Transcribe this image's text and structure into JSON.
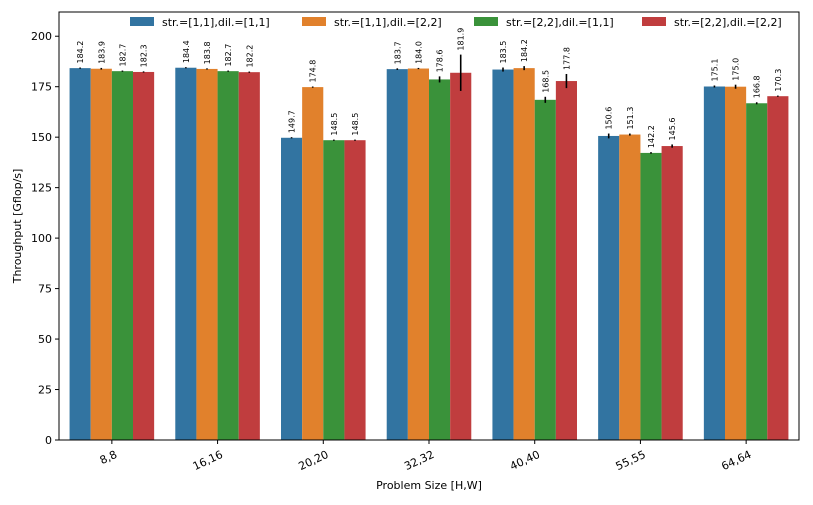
{
  "chart_data": {
    "type": "bar",
    "xlabel": "Problem Size [H,W]",
    "ylabel": "Throughput [Gflop/s]",
    "ylim": [
      0,
      212
    ],
    "yticks": [
      0,
      25,
      50,
      75,
      100,
      125,
      150,
      175,
      200
    ],
    "ytick_labels": [
      "0",
      "25",
      "50",
      "75",
      "100",
      "125",
      "150",
      "175",
      "200"
    ],
    "grid": false,
    "legend_position": "top",
    "categories": [
      "8,8",
      "16,16",
      "20,20",
      "32,32",
      "40,40",
      "55,55",
      "64,64"
    ],
    "series": [
      {
        "name": "str.=[1,1],dil.=[1,1]",
        "color": "#3274a1",
        "values": [
          184.2,
          184.4,
          149.7,
          183.7,
          183.5,
          150.6,
          175.1
        ],
        "labels": [
          "184.2",
          "184.4",
          "149.7",
          "183.7",
          "183.5",
          "150.6",
          "175.1"
        ],
        "errors": [
          0.3,
          0.3,
          0.3,
          0.4,
          1.0,
          1.2,
          0.5
        ]
      },
      {
        "name": "str.=[1,1],dil.=[2,2]",
        "color": "#e1812c",
        "values": [
          183.9,
          183.8,
          174.8,
          184.0,
          184.2,
          151.3,
          175.0
        ],
        "labels": [
          "183.9",
          "183.8",
          "174.8",
          "184.0",
          "184.2",
          "151.3",
          "175.0"
        ],
        "errors": [
          0.4,
          0.3,
          0.3,
          0.3,
          1.0,
          0.5,
          1.0
        ]
      },
      {
        "name": "str.=[2,2],dil.=[1,1]",
        "color": "#3a923a",
        "values": [
          182.7,
          182.7,
          148.5,
          178.6,
          168.5,
          142.2,
          166.8
        ],
        "labels": [
          "182.7",
          "182.7",
          "148.5",
          "178.6",
          "168.5",
          "142.2",
          "166.8"
        ],
        "errors": [
          0.3,
          0.3,
          0.3,
          1.5,
          1.5,
          0.4,
          0.5
        ]
      },
      {
        "name": "str.=[2,2],dil.=[2,2]",
        "color": "#c03d3e",
        "values": [
          182.3,
          182.2,
          148.5,
          181.9,
          177.8,
          145.6,
          170.3
        ],
        "labels": [
          "182.3",
          "182.2",
          "148.5",
          "181.9",
          "177.8",
          "145.6",
          "170.3"
        ],
        "errors": [
          0.3,
          0.3,
          0.3,
          9.0,
          3.5,
          0.8,
          0.3
        ]
      }
    ]
  }
}
